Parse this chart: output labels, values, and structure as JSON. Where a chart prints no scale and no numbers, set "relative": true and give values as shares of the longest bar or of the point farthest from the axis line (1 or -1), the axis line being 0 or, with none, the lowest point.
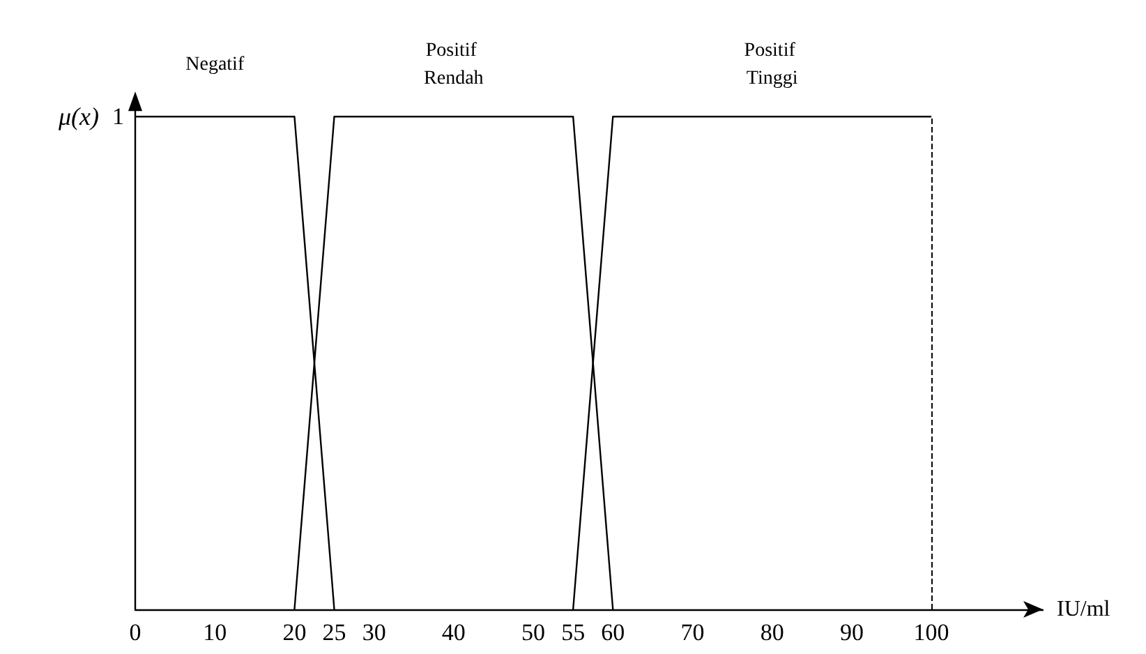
{
  "chart_data": {
    "type": "line",
    "ylabel": "μ(x)",
    "xlabel": "IU/ml",
    "series": [
      {
        "name": "Negatif",
        "color": "#000000",
        "x": [
          0,
          20,
          25
        ],
        "values": [
          1,
          1,
          0
        ]
      },
      {
        "name": "Positif Rendah",
        "color": "#000000",
        "x": [
          20,
          25,
          55,
          60
        ],
        "values": [
          0,
          1,
          1,
          0
        ]
      },
      {
        "name": "Positif Tinggi",
        "color": "#000000",
        "x": [
          55,
          60,
          100
        ],
        "values": [
          0,
          1,
          1
        ]
      }
    ],
    "xlim": [
      0,
      114
    ],
    "relative": true,
    "annotations": [
      "1"
    ],
    "xticks": [
      0,
      10,
      20,
      25,
      30,
      40,
      50,
      55,
      60,
      70,
      80,
      90,
      100
    ],
    "ref_lines": [
      {
        "axis": "x",
        "value": 100,
        "label": null,
        "color": "#000000",
        "line_style": "dashed"
      }
    ],
    "grid": false,
    "legend": false,
    "marker": "none",
    "line_style": "solid"
  }
}
